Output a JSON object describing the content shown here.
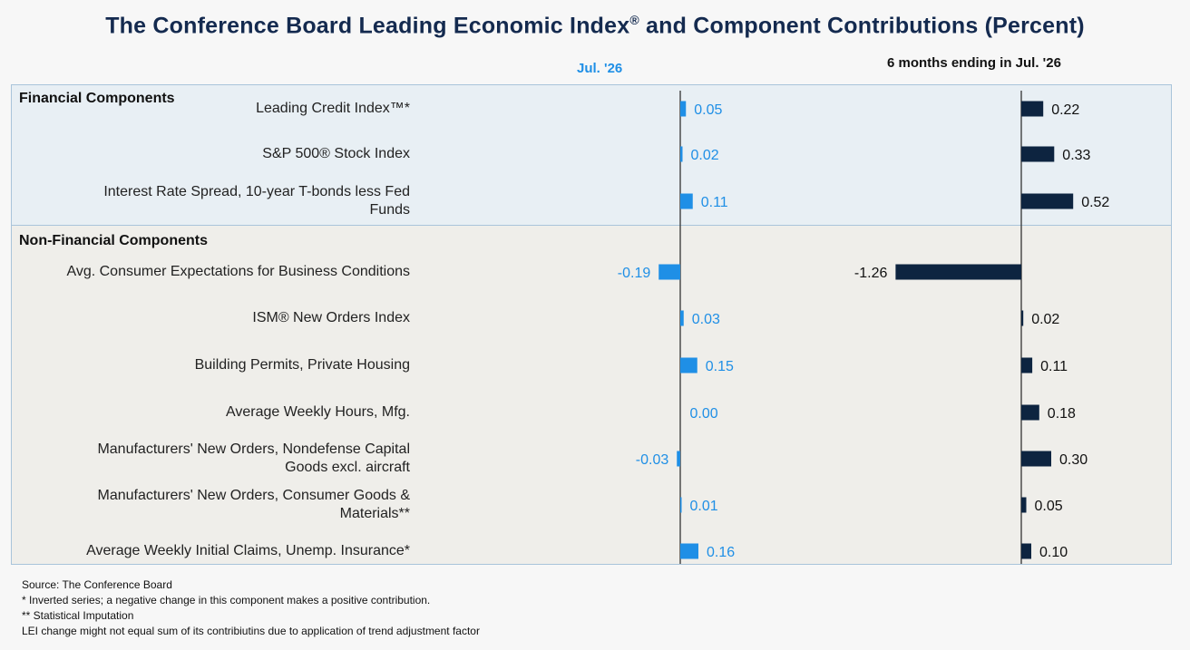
{
  "title": "The Conference Board Leading Economic Index",
  "title_mark": "®",
  "title_tail": " and Component Contributions (Percent)",
  "columns": {
    "monthly": "Jul.  '26",
    "six_month": "6 months ending in Jul.  '26"
  },
  "groups": {
    "financial": "Financial Components",
    "non_financial": "Non-Financial Components"
  },
  "colors": {
    "monthly_bar": "#1f8fe6",
    "six_month_bar": "#0d2440",
    "axis": "#333333"
  },
  "chart_data": {
    "type": "bar",
    "orientation": "horizontal",
    "title": "The Conference Board Leading Economic Index® and Component Contributions (Percent)",
    "categories": [
      "Leading Credit Index™*",
      "S&P 500® Stock Index",
      "Interest Rate Spread, 10-year T-bonds less Fed Funds",
      "Avg. Consumer Expectations for Business Conditions",
      "ISM® New Orders Index",
      "Building Permits, Private Housing",
      "Average Weekly Hours, Mfg.",
      "Manufacturers' New Orders, Nondefense Capital Goods excl. aircraft",
      "Manufacturers' New Orders, Consumer Goods & Materials**",
      "Average Weekly Initial Claims, Unemp. Insurance*"
    ],
    "series": [
      {
        "name": "Jul.  '26",
        "values": [
          0.05,
          0.02,
          0.11,
          -0.19,
          0.03,
          0.15,
          0.0,
          -0.03,
          0.01,
          0.16
        ],
        "labels": [
          "0.05",
          "0.02",
          "0.11",
          "-0.19",
          "0.03",
          "0.15",
          "0.00",
          "-0.03",
          "0.01",
          "0.16"
        ]
      },
      {
        "name": "6 months ending in Jul.  '26",
        "values": [
          0.22,
          0.33,
          0.52,
          -1.26,
          0.02,
          0.11,
          0.18,
          0.3,
          0.05,
          0.1
        ],
        "labels": [
          "0.22",
          "0.33",
          "0.52",
          "-1.26",
          "0.02",
          "0.11",
          "0.18",
          "0.30",
          "0.05",
          "0.10"
        ]
      }
    ],
    "groups": [
      {
        "name": "Financial Components",
        "rows": [
          0,
          1,
          2
        ]
      },
      {
        "name": "Non-Financial Components",
        "rows": [
          3,
          4,
          5,
          6,
          7,
          8,
          9
        ]
      }
    ]
  },
  "row_labels": [
    [
      "Leading Credit Index™*"
    ],
    [
      "S&P 500® Stock Index"
    ],
    [
      "Interest Rate Spread, 10-year T-bonds less Fed",
      "Funds"
    ],
    [
      "Avg. Consumer Expectations for Business Conditions"
    ],
    [
      "ISM® New Orders Index"
    ],
    [
      "Building Permits, Private Housing"
    ],
    [
      "Average Weekly Hours, Mfg."
    ],
    [
      "Manufacturers' New Orders, Nondefense Capital",
      "Goods excl. aircraft"
    ],
    [
      "Manufacturers' New Orders, Consumer Goods &",
      "Materials**"
    ],
    [
      "Average Weekly Initial Claims, Unemp. Insurance*"
    ]
  ],
  "notes": [
    "Source: The Conference Board",
    "*  Inverted series; a negative change in this component makes a positive contribution.",
    "**  Statistical Imputation",
    "LEI change might not equal sum of its contribiutins due to application of trend adjustment factor"
  ]
}
